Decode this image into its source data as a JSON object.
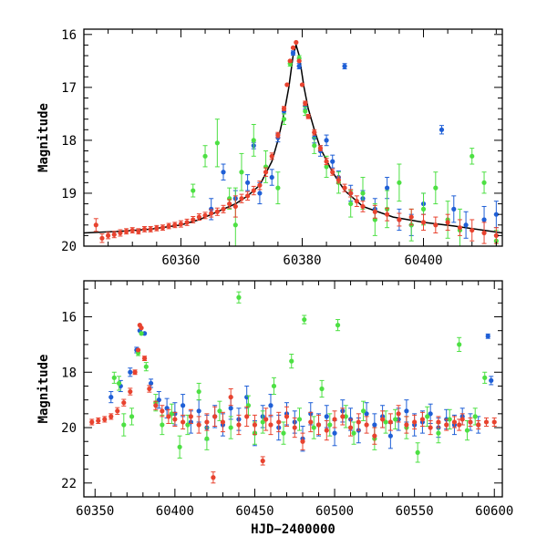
{
  "chart_data": [
    {
      "type": "scatter",
      "title": "",
      "xlabel": "",
      "ylabel": "Magnitude",
      "xlim": [
        60344,
        60413
      ],
      "ylim": [
        20,
        15.9
      ],
      "y_inverted": true,
      "x_ticks": [
        60360,
        60380,
        60400
      ],
      "x_tick_labels": [
        "60360",
        "60380",
        "60400"
      ],
      "y_ticks": [
        16,
        17,
        18,
        19,
        20
      ],
      "y_tick_labels": [
        "16",
        "17",
        "18",
        "19",
        "20"
      ],
      "model_curve": {
        "color": "#000000",
        "x": [
          60344,
          60350,
          60355,
          60360,
          60363,
          60366,
          60369,
          60371,
          60373,
          60375,
          60376,
          60377,
          60377.8,
          60378.5,
          60379,
          60379.5,
          60380.3,
          60381,
          60382,
          60383,
          60385,
          60387,
          60390,
          60395,
          60400,
          60405,
          60410,
          60413
        ],
        "y": [
          19.75,
          19.72,
          19.68,
          19.6,
          19.5,
          19.35,
          19.2,
          19.05,
          18.85,
          18.4,
          18.0,
          17.5,
          17.0,
          16.4,
          16.2,
          16.4,
          17.0,
          17.4,
          17.8,
          18.15,
          18.6,
          18.95,
          19.25,
          19.45,
          19.55,
          19.62,
          19.7,
          19.75
        ]
      },
      "series": [
        {
          "color": "#e8432f",
          "x": [
            60346,
            60347,
            60348,
            60349,
            60350,
            60351,
            60352,
            60353,
            60354,
            60355,
            60356,
            60357,
            60358,
            60359,
            60360,
            60361,
            60362,
            60363,
            60364,
            60365,
            60366,
            60367,
            60368,
            60369,
            60370,
            60371,
            60372,
            60373,
            60374,
            60375,
            60376,
            60377,
            60377.5,
            60378,
            60378.5,
            60379,
            60379.5,
            60380,
            60380.5,
            60381,
            60382,
            60383,
            60384,
            60385,
            60386,
            60387,
            60388,
            60389,
            60390,
            60392,
            60394,
            60396,
            60398,
            60400,
            60402,
            60404,
            60406,
            60408,
            60410,
            60412
          ],
          "y": [
            19.6,
            19.85,
            19.8,
            19.78,
            19.75,
            19.72,
            19.7,
            19.72,
            19.68,
            19.68,
            19.66,
            19.65,
            19.62,
            19.6,
            19.58,
            19.55,
            19.5,
            19.45,
            19.42,
            19.38,
            19.35,
            19.3,
            19.2,
            19.25,
            19.1,
            19.05,
            18.95,
            18.85,
            18.6,
            18.3,
            17.9,
            17.4,
            16.95,
            16.5,
            16.25,
            16.15,
            16.5,
            16.95,
            17.3,
            17.55,
            17.85,
            18.15,
            18.4,
            18.6,
            18.75,
            18.9,
            19.0,
            19.15,
            19.25,
            19.35,
            19.4,
            19.5,
            19.45,
            19.55,
            19.6,
            19.55,
            19.65,
            19.7,
            19.75,
            19.8
          ],
          "err": [
            0.12,
            0.08,
            0.06,
            0.06,
            0.06,
            0.05,
            0.05,
            0.05,
            0.05,
            0.05,
            0.05,
            0.05,
            0.05,
            0.05,
            0.06,
            0.06,
            0.06,
            0.06,
            0.06,
            0.07,
            0.07,
            0.07,
            0.08,
            0.2,
            0.08,
            0.08,
            0.08,
            0.08,
            0.08,
            0.06,
            0.05,
            0.04,
            0.03,
            0.03,
            0.03,
            0.03,
            0.03,
            0.03,
            0.04,
            0.04,
            0.05,
            0.05,
            0.06,
            0.06,
            0.06,
            0.07,
            0.07,
            0.1,
            0.1,
            0.12,
            0.12,
            0.12,
            0.15,
            0.15,
            0.15,
            0.15,
            0.15,
            0.2,
            0.2,
            0.15
          ]
        },
        {
          "color": "#1f5fd6",
          "x": [
            60365,
            60367,
            60369,
            60371,
            60372,
            60373,
            60375,
            60376,
            60377,
            60378.5,
            60379.5,
            60380.5,
            60382,
            60383,
            60384,
            60385,
            60386,
            60387,
            60388,
            60390,
            60392,
            60394,
            60396,
            60398,
            60400,
            60403,
            60405,
            60407,
            60410,
            60412
          ],
          "y": [
            19.3,
            18.6,
            19.1,
            18.8,
            18.1,
            19.0,
            18.7,
            17.95,
            17.45,
            16.35,
            16.6,
            17.35,
            17.95,
            18.2,
            18.0,
            18.4,
            18.7,
            16.6,
            19.0,
            19.1,
            19.3,
            18.9,
            19.5,
            19.6,
            19.2,
            17.8,
            19.3,
            19.6,
            19.5,
            19.4
          ],
          "err": [
            0.2,
            0.15,
            0.15,
            0.15,
            0.06,
            0.2,
            0.15,
            0.08,
            0.05,
            0.04,
            0.05,
            0.06,
            0.1,
            0.1,
            0.1,
            0.12,
            0.12,
            0.05,
            0.15,
            0.15,
            0.2,
            0.2,
            0.2,
            0.2,
            0.2,
            0.08,
            0.25,
            0.25,
            0.25,
            0.25
          ]
        },
        {
          "color": "#4de043",
          "x": [
            60362,
            60364,
            60366,
            60368,
            60369,
            60370,
            60372,
            60374,
            60376,
            60377,
            60378,
            60379.5,
            60380.5,
            60382,
            60384,
            60386,
            60388,
            60390,
            60392,
            60394,
            60396,
            60398,
            60400,
            60402,
            60404,
            60406,
            60408,
            60410,
            60412
          ],
          "y": [
            18.95,
            18.3,
            18.05,
            19.1,
            19.6,
            18.6,
            18.0,
            18.5,
            18.9,
            17.6,
            16.55,
            16.45,
            17.45,
            18.1,
            18.5,
            18.8,
            19.2,
            19.0,
            19.5,
            19.3,
            18.8,
            19.6,
            19.3,
            18.9,
            19.5,
            19.7,
            18.3,
            18.8,
            19.9
          ],
          "err": [
            0.12,
            0.2,
            0.45,
            0.2,
            0.7,
            0.35,
            0.3,
            0.3,
            0.3,
            0.1,
            0.05,
            0.05,
            0.08,
            0.15,
            0.2,
            0.2,
            0.25,
            0.3,
            0.3,
            0.35,
            0.35,
            0.3,
            0.3,
            0.3,
            0.35,
            0.4,
            0.15,
            0.2,
            0.2
          ]
        }
      ]
    },
    {
      "type": "scatter",
      "title": "",
      "xlabel": "HJD−2400000",
      "ylabel": "Magnitude",
      "xlim": [
        60343,
        60605
      ],
      "ylim": [
        22.5,
        14.7
      ],
      "y_inverted": true,
      "x_ticks": [
        60350,
        60400,
        60450,
        60500,
        60550,
        60600
      ],
      "x_tick_labels": [
        "60350",
        "60400",
        "60450",
        "60500",
        "60550",
        "60600"
      ],
      "y_ticks": [
        16,
        18,
        20,
        22
      ],
      "y_tick_labels": [
        "16",
        "18",
        "20",
        "22"
      ],
      "series": [
        {
          "color": "#e8432f",
          "x": [
            60348,
            60352,
            60356,
            60360,
            60364,
            60368,
            60372,
            60375,
            60377,
            60378,
            60379,
            60381,
            60384,
            60388,
            60392,
            60396,
            60400,
            60405,
            60410,
            60415,
            60420,
            60424,
            60425,
            60430,
            60435,
            60440,
            60445,
            60450,
            60455,
            60457,
            60460,
            60465,
            60470,
            60475,
            60480,
            60485,
            60490,
            60495,
            60500,
            60505,
            60510,
            60515,
            60520,
            60525,
            60530,
            60535,
            60540,
            60545,
            60550,
            60555,
            60560,
            60565,
            60570,
            60575,
            60578,
            60580,
            60585,
            60590,
            60595,
            60600
          ],
          "y": [
            19.8,
            19.75,
            19.7,
            19.6,
            19.4,
            19.1,
            18.7,
            18.0,
            17.2,
            16.3,
            16.4,
            17.5,
            18.6,
            19.2,
            19.4,
            19.6,
            19.7,
            19.8,
            19.6,
            19.9,
            19.8,
            21.8,
            19.6,
            19.8,
            18.9,
            19.9,
            19.6,
            19.9,
            21.2,
            19.7,
            19.9,
            19.8,
            19.6,
            20.0,
            20.5,
            19.8,
            19.9,
            20.1,
            19.7,
            19.6,
            20.0,
            19.8,
            19.9,
            20.3,
            19.7,
            19.8,
            19.5,
            19.9,
            19.8,
            19.7,
            20.0,
            19.8,
            19.9,
            19.8,
            19.9,
            19.7,
            19.8,
            19.9,
            19.8,
            19.8
          ],
          "err": [
            0.1,
            0.1,
            0.1,
            0.1,
            0.12,
            0.12,
            0.12,
            0.08,
            0.06,
            0.04,
            0.05,
            0.08,
            0.12,
            0.15,
            0.2,
            0.25,
            0.25,
            0.25,
            0.25,
            0.3,
            0.3,
            0.2,
            0.35,
            0.35,
            0.3,
            0.35,
            0.35,
            0.35,
            0.15,
            0.4,
            0.35,
            0.35,
            0.35,
            0.35,
            0.3,
            0.35,
            0.35,
            0.35,
            0.3,
            0.3,
            0.3,
            0.3,
            0.3,
            0.3,
            0.3,
            0.3,
            0.3,
            0.3,
            0.25,
            0.25,
            0.25,
            0.2,
            0.2,
            0.2,
            0.2,
            0.2,
            0.15,
            0.15,
            0.15,
            0.15
          ]
        },
        {
          "color": "#1f5fd6",
          "x": [
            60360,
            60366,
            60372,
            60376,
            60378,
            60381,
            60385,
            60390,
            60395,
            60400,
            60405,
            60410,
            60415,
            60420,
            60425,
            60430,
            60435,
            60440,
            60445,
            60450,
            60455,
            60460,
            60465,
            60470,
            60475,
            60480,
            60485,
            60490,
            60495,
            60500,
            60505,
            60510,
            60515,
            60520,
            60525,
            60530,
            60535,
            60540,
            60545,
            60550,
            60555,
            60560,
            60565,
            60570,
            60575,
            60580,
            60585,
            60590,
            60596,
            60598
          ],
          "y": [
            18.9,
            18.5,
            18.0,
            17.2,
            16.5,
            16.6,
            18.4,
            19.0,
            19.3,
            19.5,
            19.2,
            19.8,
            19.4,
            20.0,
            19.6,
            19.9,
            19.3,
            19.7,
            18.9,
            20.2,
            19.6,
            19.2,
            20.0,
            19.5,
            19.8,
            20.4,
            19.5,
            19.9,
            19.6,
            20.2,
            19.4,
            19.7,
            20.1,
            19.5,
            19.9,
            19.6,
            20.3,
            19.7,
            19.4,
            19.9,
            19.8,
            19.5,
            20.0,
            19.7,
            19.9,
            19.6,
            19.8,
            19.9,
            16.7,
            18.3
          ],
          "err": [
            0.2,
            0.2,
            0.15,
            0.1,
            0.06,
            0.06,
            0.15,
            0.3,
            0.35,
            0.4,
            0.4,
            0.4,
            0.4,
            0.45,
            0.4,
            0.4,
            0.4,
            0.4,
            0.4,
            0.45,
            0.4,
            0.4,
            0.45,
            0.4,
            0.4,
            0.45,
            0.4,
            0.4,
            0.4,
            0.45,
            0.4,
            0.4,
            0.45,
            0.4,
            0.4,
            0.4,
            0.45,
            0.4,
            0.4,
            0.4,
            0.4,
            0.35,
            0.35,
            0.35,
            0.35,
            0.3,
            0.3,
            0.3,
            0.08,
            0.15
          ]
        },
        {
          "color": "#4de043",
          "x": [
            60362,
            60365,
            60368,
            60373,
            60377,
            60379,
            60382,
            60388,
            60392,
            60398,
            60403,
            60408,
            60415,
            60420,
            60428,
            60435,
            60440,
            60446,
            60450,
            60455,
            60462,
            60468,
            60473,
            60478,
            60481,
            60487,
            60492,
            60497,
            60502,
            60507,
            60512,
            60518,
            60525,
            60532,
            60538,
            60545,
            60552,
            60558,
            60565,
            60572,
            60578,
            60583,
            60588,
            60594
          ],
          "y": [
            18.2,
            18.4,
            19.9,
            19.6,
            17.3,
            16.6,
            17.8,
            19.1,
            19.9,
            19.5,
            20.7,
            19.9,
            18.7,
            20.4,
            19.4,
            20.0,
            15.3,
            19.2,
            20.2,
            19.8,
            18.5,
            20.2,
            17.6,
            19.7,
            16.1,
            20.0,
            18.6,
            19.9,
            16.3,
            19.6,
            20.2,
            19.4,
            20.4,
            19.8,
            19.7,
            20.0,
            20.9,
            19.6,
            20.2,
            19.7,
            17.0,
            20.1,
            19.6,
            18.2
          ],
          "err": [
            0.2,
            0.25,
            0.4,
            0.3,
            0.1,
            0.06,
            0.15,
            0.3,
            0.35,
            0.35,
            0.4,
            0.35,
            0.3,
            0.4,
            0.35,
            0.4,
            0.2,
            0.35,
            0.4,
            0.4,
            0.3,
            0.4,
            0.25,
            0.4,
            0.15,
            0.4,
            0.3,
            0.4,
            0.2,
            0.4,
            0.4,
            0.35,
            0.4,
            0.4,
            0.35,
            0.4,
            0.35,
            0.35,
            0.35,
            0.35,
            0.25,
            0.35,
            0.3,
            0.2
          ]
        }
      ]
    }
  ]
}
